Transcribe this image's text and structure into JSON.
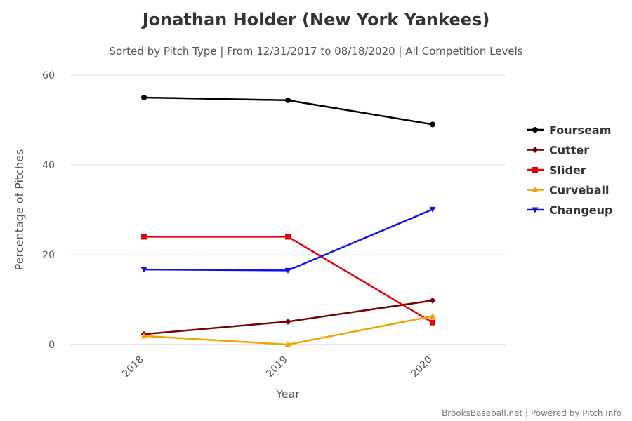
{
  "chart_data": {
    "type": "line",
    "title": "Jonathan Holder (New York Yankees)",
    "subtitle": "Sorted by Pitch Type | From 12/31/2017 to 08/18/2020 | All Competition Levels",
    "xlabel": "Year",
    "ylabel": "Percentage of Pitches",
    "categories": [
      "2018",
      "2019",
      "2020"
    ],
    "ylim": [
      0,
      60
    ],
    "yticks": [
      "0",
      "20",
      "40",
      "60"
    ],
    "grid": true,
    "legend_position": "right",
    "series": [
      {
        "name": "Fourseam",
        "color": "#000000",
        "marker": "circle",
        "values": [
          55.0,
          54.4,
          49.0
        ]
      },
      {
        "name": "Cutter",
        "color": "#7b0000",
        "marker": "diamond",
        "values": [
          2.3,
          5.1,
          9.8
        ]
      },
      {
        "name": "Slider",
        "color": "#e8000b",
        "marker": "square",
        "values": [
          24.0,
          24.0,
          4.9
        ]
      },
      {
        "name": "Curveball",
        "color": "#f5a100",
        "marker": "triangle-up",
        "values": [
          1.9,
          0.0,
          6.3
        ]
      },
      {
        "name": "Changeup",
        "color": "#1010e8",
        "marker": "triangle-down",
        "values": [
          16.7,
          16.5,
          30.1
        ]
      }
    ],
    "credit": "BrooksBaseball.net | Powered by Pitch Info"
  }
}
